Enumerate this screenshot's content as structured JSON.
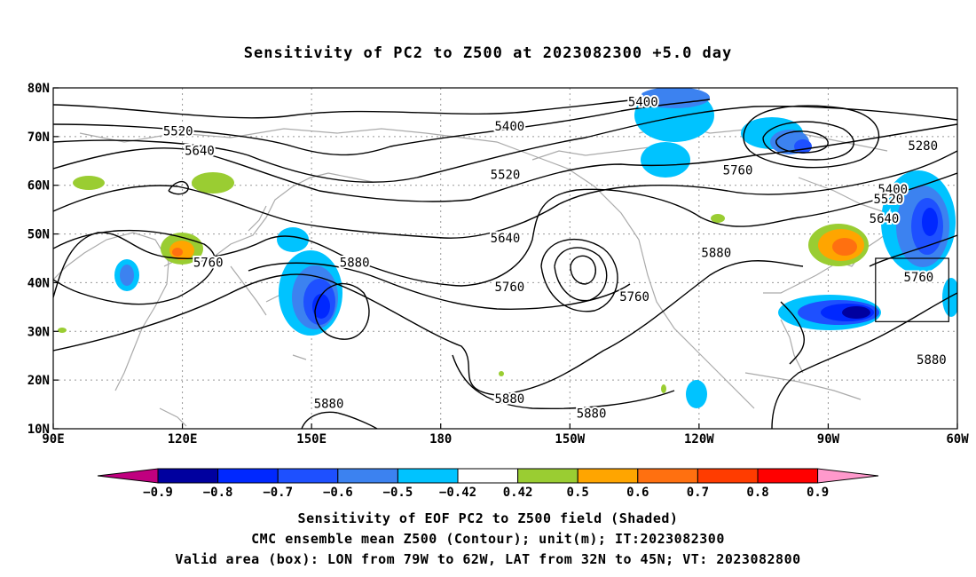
{
  "title": "Sensitivity of PC2 to Z500 at 2023082300 +5.0 day",
  "map": {
    "lat_labels": [
      "80N",
      "70N",
      "60N",
      "50N",
      "40N",
      "30N",
      "20N",
      "10N"
    ],
    "lon_labels": [
      "90E",
      "120E",
      "150E",
      "180",
      "150W",
      "120W",
      "90W",
      "60W"
    ],
    "contour_labels": [
      {
        "text": "5520",
        "lat": 71,
        "lon": 119
      },
      {
        "text": "5640",
        "lat": 67,
        "lon": 124
      },
      {
        "text": "5400",
        "lat": 72,
        "lon": 196
      },
      {
        "text": "5400",
        "lat": 77,
        "lon": 227
      },
      {
        "text": "5280",
        "lat": 68,
        "lon": -68
      },
      {
        "text": "5400",
        "lat": 59,
        "lon": -75
      },
      {
        "text": "5520",
        "lat": 57,
        "lon": -76
      },
      {
        "text": "5640",
        "lat": 53,
        "lon": -77
      },
      {
        "text": "5520",
        "lat": 62,
        "lon": 195
      },
      {
        "text": "5760",
        "lat": 63,
        "lon": -111
      },
      {
        "text": "5640",
        "lat": 49,
        "lon": 195
      },
      {
        "text": "5760",
        "lat": 44,
        "lon": 126
      },
      {
        "text": "5880",
        "lat": 44,
        "lon": 160
      },
      {
        "text": "5760",
        "lat": 39,
        "lon": 196
      },
      {
        "text": "5760",
        "lat": 37,
        "lon": -135
      },
      {
        "text": "5880",
        "lat": 46,
        "lon": -116
      },
      {
        "text": "5760",
        "lat": 41,
        "lon": -69
      },
      {
        "text": "5880",
        "lat": 24,
        "lon": -66
      },
      {
        "text": "5880",
        "lat": 16,
        "lon": 196
      },
      {
        "text": "5880",
        "lat": 13,
        "lon": -145
      },
      {
        "text": "5880",
        "lat": 15,
        "lon": 154
      }
    ]
  },
  "colorbar": {
    "colors": [
      "#c0007f",
      "#00009f",
      "#0028ff",
      "#1e50ff",
      "#3c82f0",
      "#00c3ff",
      "#ffffff",
      "#9acd32",
      "#ffa500",
      "#ff7010",
      "#ff3c00",
      "#ff0000",
      "#ff99cc"
    ],
    "labels": [
      "−0.9",
      "−0.8",
      "−0.7",
      "−0.6",
      "−0.5",
      "−0.42",
      "0.42",
      "0.5",
      "0.6",
      "0.7",
      "0.8",
      "0.9"
    ]
  },
  "captions": [
    "Sensitivity of EOF PC2 to Z500 field (Shaded)",
    "CMC ensemble mean Z500 (Contour); unit(m); IT:2023082300",
    "Valid area (box): LON from 79W to 62W, LAT from 32N to 45N; VT: 2023082800"
  ]
}
